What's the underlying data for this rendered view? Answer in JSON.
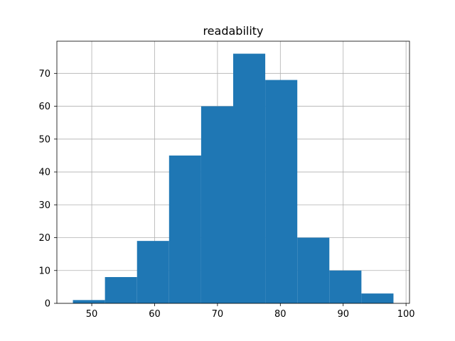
{
  "chart_data": {
    "type": "bar",
    "title": "readability",
    "xlabel": "",
    "ylabel": "",
    "bins": [
      {
        "x0": 47.0,
        "x1": 52.1,
        "count": 1
      },
      {
        "x0": 52.1,
        "x1": 57.2,
        "count": 8
      },
      {
        "x0": 57.2,
        "x1": 62.3,
        "count": 19
      },
      {
        "x0": 62.3,
        "x1": 67.4,
        "count": 45
      },
      {
        "x0": 67.4,
        "x1": 72.5,
        "count": 60
      },
      {
        "x0": 72.5,
        "x1": 77.6,
        "count": 76
      },
      {
        "x0": 77.6,
        "x1": 82.7,
        "count": 68
      },
      {
        "x0": 82.7,
        "x1": 87.8,
        "count": 20
      },
      {
        "x0": 87.8,
        "x1": 92.9,
        "count": 10
      },
      {
        "x0": 92.9,
        "x1": 98.0,
        "count": 3
      }
    ],
    "xlim": [
      44.45,
      100.55
    ],
    "ylim": [
      0,
      79.8
    ],
    "x_ticks": [
      50,
      60,
      70,
      80,
      90,
      100
    ],
    "y_ticks": [
      0,
      10,
      20,
      30,
      40,
      50,
      60,
      70
    ],
    "bar_color": "#1f77b4",
    "grid": true,
    "grid_color": "#b0b0b0"
  }
}
